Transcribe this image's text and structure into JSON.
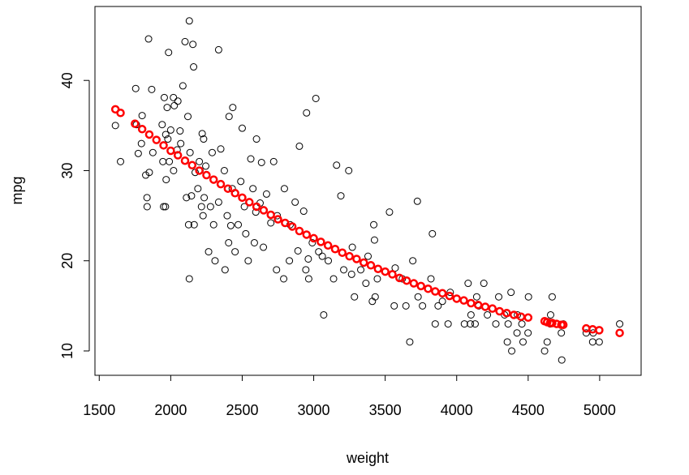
{
  "chart_data": {
    "type": "scatter",
    "x_label": "weight",
    "y_label": "mpg",
    "xlim": [
      1470,
      5290
    ],
    "ylim": [
      7.3,
      48.2
    ],
    "xticks": [
      1500,
      2000,
      2500,
      3000,
      3500,
      4000,
      4500,
      5000
    ],
    "yticks": [
      10,
      20,
      30,
      40
    ],
    "series": [
      {
        "color": "#000000",
        "x": [
          1613,
          1649,
          1755,
          1760,
          1773,
          1795,
          1800,
          1825,
          1834,
          1835,
          1845,
          1850,
          1867,
          1875,
          1940,
          1945,
          1950,
          1955,
          1963,
          1965,
          1968,
          1975,
          1980,
          1985,
          1990,
          2000,
          2019,
          2020,
          2025,
          2045,
          2050,
          2065,
          2070,
          2085,
          2100,
          2110,
          2120,
          2125,
          2130,
          2130,
          2135,
          2145,
          2155,
          2160,
          2164,
          2171,
          2190,
          2200,
          2205,
          2215,
          2220,
          2226,
          2230,
          2234,
          2245,
          2265,
          2278,
          2290,
          2300,
          2310,
          2335,
          2335,
          2350,
          2375,
          2380,
          2395,
          2405,
          2408,
          2420,
          2430,
          2434,
          2450,
          2472,
          2490,
          2500,
          2515,
          2525,
          2542,
          2560,
          2575,
          2585,
          2595,
          2600,
          2625,
          2635,
          2648,
          2670,
          2700,
          2720,
          2740,
          2745,
          2790,
          2795,
          2830,
          2835,
          2870,
          2890,
          2900,
          2930,
          2945,
          2950,
          2962,
          2965,
          2990,
          3015,
          3035,
          3060,
          3070,
          3102,
          3139,
          3160,
          3190,
          3210,
          3245,
          3265,
          3270,
          3285,
          3329,
          3365,
          3380,
          3410,
          3420,
          3425,
          3430,
          3445,
          3530,
          3563,
          3570,
          3620,
          3645,
          3672,
          3693,
          3725,
          3730,
          3761,
          3820,
          3830,
          3850,
          3870,
          3900,
          3940,
          3955,
          4054,
          4080,
          4096,
          4100,
          4129,
          4140,
          4154,
          4190,
          4215,
          4274,
          4294,
          4335,
          4354,
          4360,
          4380,
          4385,
          4422,
          4425,
          4456,
          4464,
          4499,
          4502,
          4615,
          4633,
          4654,
          4657,
          4668,
          4699,
          4732,
          4735,
          4746,
          4906,
          4951,
          4955,
          4997,
          5140
        ],
        "values": [
          35,
          31,
          39.1,
          35.1,
          31.9,
          33,
          36.1,
          29.5,
          27,
          26,
          44.6,
          29.8,
          39,
          32,
          35.1,
          31,
          26,
          38.1,
          26,
          34,
          29,
          37,
          33.5,
          43.1,
          31,
          34.5,
          38.1,
          30,
          37.2,
          32.3,
          37.7,
          34.4,
          33,
          39.4,
          44.3,
          27,
          36,
          24,
          46.6,
          18,
          32,
          27.2,
          44,
          41.5,
          24,
          29.8,
          28,
          31,
          30,
          26,
          34.1,
          25,
          33.5,
          27,
          30.5,
          21,
          26,
          32,
          24,
          20,
          43.4,
          26.5,
          32.4,
          30,
          19,
          25,
          22,
          36,
          23.9,
          28,
          37,
          21,
          24,
          28.8,
          34.7,
          26,
          23,
          20,
          31.3,
          28,
          22,
          25.4,
          33.5,
          26.4,
          30.9,
          21.5,
          27.4,
          24.2,
          31,
          19,
          25,
          18,
          28,
          20,
          24,
          26.5,
          21.1,
          32.7,
          25.5,
          19,
          36.4,
          20.2,
          18,
          22,
          38,
          21,
          20.5,
          14,
          20,
          18,
          30.6,
          27.2,
          19,
          30,
          18.5,
          21.5,
          16,
          19,
          17.5,
          20.5,
          15.5,
          24,
          22.3,
          16,
          18,
          25.4,
          15,
          19.2,
          18,
          15,
          11,
          20,
          26.6,
          16,
          15,
          18,
          23,
          13,
          15,
          15.5,
          13,
          16.5,
          13,
          17.5,
          13,
          14,
          13,
          16,
          15,
          17.5,
          14,
          13,
          16,
          14,
          11,
          13,
          16.5,
          10,
          12,
          14,
          13,
          11,
          12,
          16,
          10,
          11,
          13,
          14,
          16,
          13,
          12,
          9,
          13,
          12,
          11,
          12,
          11,
          13
        ]
      },
      {
        "color": "#ff0000",
        "x": [
          1613,
          1649,
          1750,
          1800,
          1850,
          1900,
          1950,
          2000,
          2050,
          2100,
          2150,
          2200,
          2250,
          2300,
          2350,
          2400,
          2450,
          2500,
          2550,
          2600,
          2650,
          2700,
          2750,
          2800,
          2850,
          2900,
          2950,
          3000,
          3050,
          3100,
          3150,
          3200,
          3250,
          3300,
          3350,
          3400,
          3450,
          3500,
          3550,
          3600,
          3650,
          3700,
          3750,
          3800,
          3850,
          3900,
          3950,
          4000,
          4050,
          4100,
          4150,
          4200,
          4250,
          4300,
          4350,
          4400,
          4450,
          4500,
          4615,
          4633,
          4654,
          4668,
          4699,
          4732,
          4746,
          4906,
          4951,
          4997,
          5140
        ],
        "values": [
          36.8,
          36.4,
          35.2,
          34.6,
          34.0,
          33.4,
          32.8,
          32.2,
          31.7,
          31.1,
          30.6,
          30.0,
          29.5,
          29.0,
          28.5,
          28.0,
          27.5,
          27.0,
          26.5,
          26.0,
          25.6,
          25.1,
          24.6,
          24.2,
          23.8,
          23.3,
          22.9,
          22.5,
          22.1,
          21.7,
          21.3,
          20.9,
          20.5,
          20.2,
          19.8,
          19.5,
          19.1,
          18.8,
          18.5,
          18.1,
          17.8,
          17.5,
          17.2,
          16.9,
          16.6,
          16.4,
          16.1,
          15.8,
          15.6,
          15.3,
          15.1,
          14.9,
          14.7,
          14.4,
          14.2,
          14.0,
          13.8,
          13.7,
          13.3,
          13.2,
          13.1,
          13.1,
          13.0,
          12.9,
          12.9,
          12.5,
          12.4,
          12.3,
          12.0
        ]
      }
    ]
  }
}
